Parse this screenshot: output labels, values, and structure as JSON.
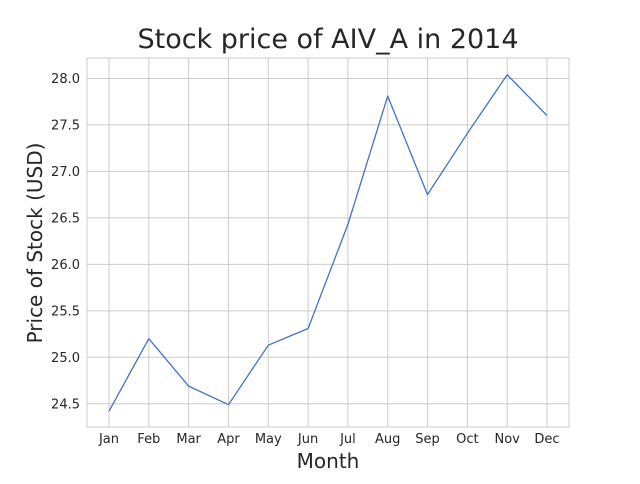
{
  "chart_data": {
    "type": "line",
    "title": "Stock price of AIV_A in 2014",
    "xlabel": "Month",
    "ylabel": "Price of Stock (USD)",
    "categories": [
      "Jan",
      "Feb",
      "Mar",
      "Apr",
      "May",
      "Jun",
      "Jul",
      "Aug",
      "Sep",
      "Oct",
      "Nov",
      "Dec"
    ],
    "series": [
      {
        "values": [
          24.42,
          25.2,
          24.69,
          24.49,
          25.13,
          25.31,
          26.43,
          27.81,
          26.75,
          27.41,
          28.04,
          27.6
        ],
        "color": "#4472c4"
      }
    ],
    "yticks": [
      24.5,
      25.0,
      25.5,
      26.0,
      26.5,
      27.0,
      27.5,
      28.0
    ],
    "ylim": [
      24.25,
      28.22
    ],
    "grid": true,
    "legend": "none"
  }
}
